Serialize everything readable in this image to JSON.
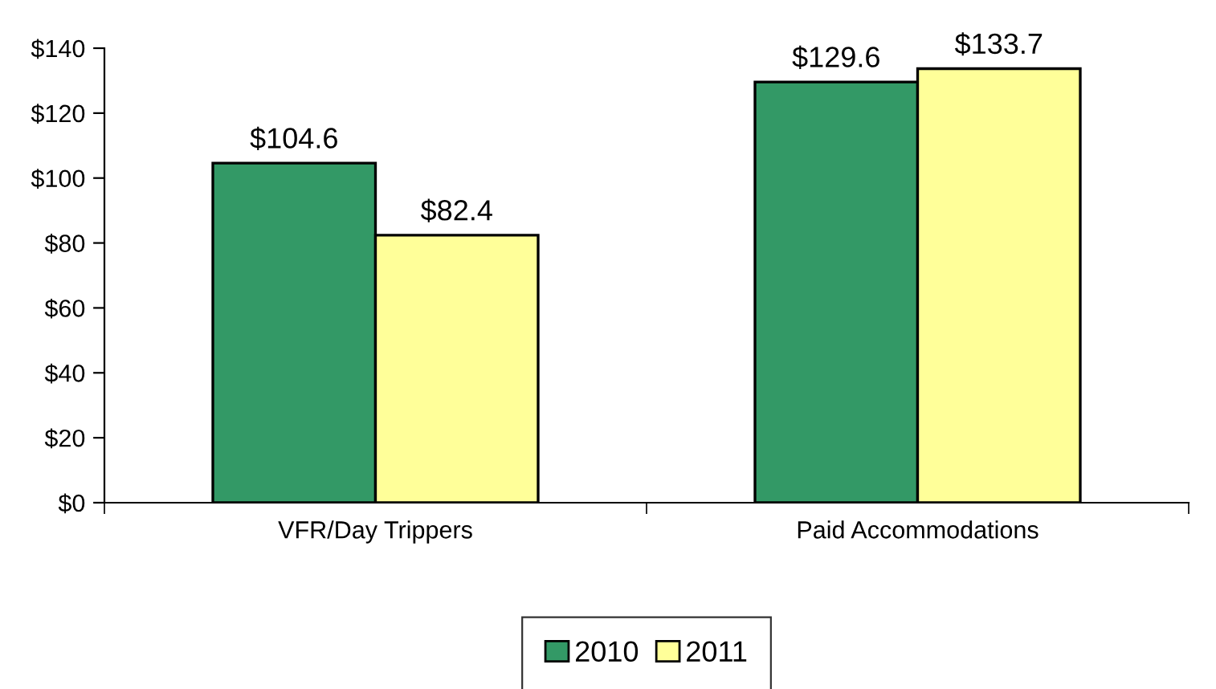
{
  "chart_data": {
    "type": "bar",
    "categories": [
      "VFR/Day Trippers",
      "Paid Accommodations"
    ],
    "series": [
      {
        "name": "2010",
        "color": "#339966",
        "values": [
          104.6,
          129.6
        ],
        "value_labels": [
          "$104.6",
          "$129.6"
        ]
      },
      {
        "name": "2011",
        "color": "#ffff99",
        "values": [
          82.4,
          133.7
        ],
        "value_labels": [
          "$82.4",
          "$133.7"
        ]
      }
    ],
    "ylim": [
      0,
      140
    ],
    "yticks": [
      {
        "value": 0,
        "label": "$0"
      },
      {
        "value": 20,
        "label": "$20"
      },
      {
        "value": 40,
        "label": "$40"
      },
      {
        "value": 60,
        "label": "$60"
      },
      {
        "value": 80,
        "label": "$80"
      },
      {
        "value": 100,
        "label": "$100"
      },
      {
        "value": 120,
        "label": "$120"
      },
      {
        "value": 140,
        "label": "$140"
      }
    ],
    "grid": false,
    "legend": "bottom"
  }
}
